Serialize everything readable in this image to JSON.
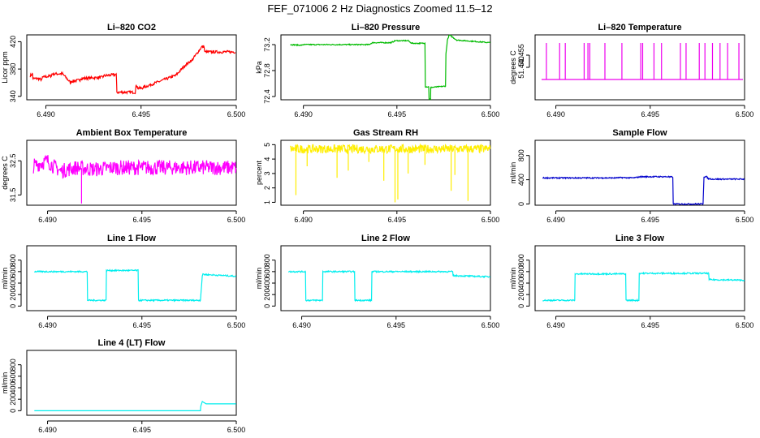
{
  "figure": {
    "title": "FEF_071006  2 Hz Diagnostics Zoomed 11.5–12"
  },
  "chart_data": [
    {
      "type": "line",
      "title": "Li–820 CO2",
      "ylabel": "Licor ppm",
      "xlim": [
        6.489,
        6.5
      ],
      "ylim": [
        335,
        430
      ],
      "xticks": [
        6.49,
        6.495,
        6.5
      ],
      "xtick_labels": [
        "6.490",
        "6.495",
        "6.500"
      ],
      "yticks": [
        340,
        380,
        420
      ],
      "ytick_labels": [
        "340",
        "380",
        "420"
      ],
      "color": "#ff0000",
      "noise": 2,
      "series": [
        {
          "x": [
            6.48918,
            6.4893,
            6.48932,
            6.4896,
            6.4898,
            6.48982,
            6.4903,
            6.49032,
            6.49085,
            6.49088,
            6.4913,
            6.49133,
            6.4918,
            6.49183,
            6.493,
            6.49303,
            6.4937,
            6.49373,
            6.49392,
            6.49395,
            6.4947,
            6.49473,
            6.4948,
            6.49483,
            6.49498,
            6.49502,
            6.49675,
            6.4968,
            6.4974,
            6.49746,
            6.4976,
            6.49765,
            6.4982,
            6.49825,
            6.4983,
            6.49835,
            6.49995
          ],
          "y": [
            370,
            373,
            366,
            366,
            364,
            368,
            370,
            373,
            373,
            373,
            360,
            362,
            364,
            366,
            368,
            370,
            372,
            346,
            346,
            346,
            346,
            355,
            355,
            352,
            352,
            352,
            370,
            370,
            388,
            388,
            392,
            392,
            413,
            413,
            413,
            405,
            405
          ]
        }
      ]
    },
    {
      "type": "line",
      "title": "Li–820 Pressure",
      "ylabel": "kPa",
      "xlim": [
        6.4888,
        6.5
      ],
      "ylim": [
        72.35,
        73.35
      ],
      "xticks": [
        6.49,
        6.495,
        6.5
      ],
      "xtick_labels": [
        "6.490",
        "6.495",
        "6.500"
      ],
      "yticks": [
        72.4,
        72.8,
        73.2
      ],
      "ytick_labels": [
        "72.4",
        "72.8",
        "73.2"
      ],
      "color": "#00bb00",
      "noise": 0.008,
      "series": [
        {
          "x": [
            6.4893,
            6.4899,
            6.49,
            6.4935,
            6.4937,
            6.4947,
            6.4949,
            6.4956,
            6.4958,
            6.4965,
            6.49652,
            6.4967,
            6.49672,
            6.4968,
            6.49681,
            6.4976,
            6.49762,
            6.4977,
            6.4978,
            6.4982,
            6.49999
          ],
          "y": [
            73.2,
            73.19,
            73.2,
            73.2,
            73.23,
            73.23,
            73.26,
            73.26,
            73.22,
            73.22,
            72.55,
            72.55,
            72.36,
            72.36,
            72.54,
            72.56,
            73.05,
            73.27,
            73.35,
            73.27,
            73.23
          ]
        }
      ]
    },
    {
      "type": "line",
      "title": "Li–820 Temperature",
      "ylabel": "degrees C",
      "xlim": [
        6.4889,
        6.5
      ],
      "ylim": [
        51.4,
        51.48
      ],
      "xticks": [
        6.49,
        6.495,
        6.5
      ],
      "xtick_labels": [
        "6.490",
        "6.495",
        "6.500"
      ],
      "yticks": [
        51.44,
        51.455
      ],
      "ytick_labels": [
        "51.440",
        "51.455"
      ],
      "color": "#ee00ee",
      "baseline": 51.425,
      "spike_top": 51.47,
      "spikes": [
        6.4895,
        6.4902,
        6.4905,
        6.4915,
        6.4917,
        6.4918,
        6.4926,
        6.4935,
        6.4945,
        6.4946,
        6.4952,
        6.4956,
        6.4966,
        6.4969,
        6.4976,
        6.4979,
        6.4983,
        6.4987,
        6.4991,
        6.4997
      ]
    },
    {
      "type": "line",
      "title": "Ambient Box Temperature",
      "ylabel": "degrees C",
      "xlim": [
        6.4889,
        6.5
      ],
      "ylim": [
        31.2,
        33.1
      ],
      "xticks": [
        6.49,
        6.495,
        6.5
      ],
      "xtick_labels": [
        "6.490",
        "6.495",
        "6.500"
      ],
      "yticks": [
        31.5,
        32.5
      ],
      "ytick_labels": [
        "31.5",
        "32.5"
      ],
      "color": "#ff00ff",
      "noise": 0.22,
      "series": [
        {
          "x": [
            6.48925,
            6.49,
            6.4903,
            6.4907,
            6.4915,
            6.4925,
            6.4935,
            6.49999
          ],
          "y": [
            32.35,
            32.5,
            32.35,
            32.2,
            32.3,
            32.25,
            32.3,
            32.3
          ]
        }
      ],
      "spikes_down": [
        {
          "x": 6.4918,
          "y": 31.25
        }
      ]
    },
    {
      "type": "line",
      "title": "Gas Stream RH",
      "ylabel": "percent",
      "xlim": [
        6.4888,
        6.5
      ],
      "ylim": [
        0.8,
        5.3
      ],
      "xticks": [
        6.49,
        6.495,
        6.5
      ],
      "xtick_labels": [
        "6.490",
        "6.495",
        "6.500"
      ],
      "yticks": [
        1,
        2,
        3,
        4,
        5
      ],
      "ytick_labels": [
        "1",
        "2",
        "3",
        "4",
        "5"
      ],
      "color": "#ffee00",
      "noise": 0.3,
      "series": [
        {
          "x": [
            6.4893,
            6.49999
          ],
          "y": [
            4.7,
            4.7
          ]
        }
      ],
      "spikes_down": [
        {
          "x": 6.4896,
          "y": 1.5
        },
        {
          "x": 6.4902,
          "y": 3.5
        },
        {
          "x": 6.4918,
          "y": 2.7
        },
        {
          "x": 6.4924,
          "y": 3.2
        },
        {
          "x": 6.4935,
          "y": 3.8
        },
        {
          "x": 6.4943,
          "y": 2.5
        },
        {
          "x": 6.4949,
          "y": 1.0
        },
        {
          "x": 6.49505,
          "y": 1.2
        },
        {
          "x": 6.4956,
          "y": 3.0
        },
        {
          "x": 6.4965,
          "y": 3.6
        },
        {
          "x": 6.4979,
          "y": 1.8
        },
        {
          "x": 6.4981,
          "y": 2.9
        },
        {
          "x": 6.4988,
          "y": 1.1
        }
      ]
    },
    {
      "type": "line",
      "title": "Sample Flow",
      "ylabel": "ml/min",
      "xlim": [
        6.4889,
        6.5
      ],
      "ylim": [
        -20,
        1050
      ],
      "xticks": [
        6.49,
        6.495,
        6.5
      ],
      "xtick_labels": [
        "6.490",
        "6.495",
        "6.500"
      ],
      "yticks": [
        0,
        400,
        800
      ],
      "ytick_labels": [
        "0",
        "400",
        "800"
      ],
      "color": "#0000cc",
      "noise": 10,
      "series": [
        {
          "x": [
            6.4893,
            6.492,
            6.4925,
            6.4931,
            6.4935,
            6.4941,
            6.4945,
            6.496,
            6.49602,
            6.4962,
            6.49622,
            6.49625,
            6.4978,
            6.49785,
            6.498,
            6.49805,
            6.4983,
            6.49999
          ],
          "y": [
            430,
            430,
            430,
            430,
            435,
            430,
            450,
            450,
            445,
            445,
            0,
            0,
            0,
            450,
            450,
            420,
            410,
            410
          ]
        }
      ]
    },
    {
      "type": "line",
      "title": "Line 1 Flow",
      "ylabel": "ml/min",
      "xlim": [
        6.4889,
        6.5
      ],
      "ylim": [
        -80,
        1050
      ],
      "xticks": [
        6.49,
        6.495,
        6.5
      ],
      "xtick_labels": [
        "6.490",
        "6.495",
        "6.500"
      ],
      "yticks": [
        0,
        200,
        400,
        600,
        800
      ],
      "ytick_labels": [
        "0",
        "200",
        "400",
        "600",
        "800"
      ],
      "color": "#00eeee",
      "noise": 12,
      "series": [
        {
          "x": [
            6.4893,
            6.4921,
            6.49212,
            6.4931,
            6.49312,
            6.4948,
            6.49482,
            6.4981,
            6.4982,
            6.49825,
            6.4983,
            6.49999
          ],
          "y": [
            600,
            600,
            100,
            100,
            620,
            620,
            100,
            100,
            530,
            560,
            550,
            520
          ]
        }
      ]
    },
    {
      "type": "line",
      "title": "Line 2 Flow",
      "ylabel": "ml/min",
      "xlim": [
        6.4889,
        6.5
      ],
      "ylim": [
        -80,
        1050
      ],
      "xticks": [
        6.49,
        6.495,
        6.5
      ],
      "xtick_labels": [
        "6.490",
        "6.495",
        "6.500"
      ],
      "yticks": [
        0,
        200,
        400,
        600,
        800
      ],
      "ytick_labels": [
        "0",
        "200",
        "400",
        "600",
        "800"
      ],
      "color": "#00eeee",
      "noise": 12,
      "series": [
        {
          "x": [
            6.4893,
            6.4902,
            6.49022,
            6.4911,
            6.49112,
            6.4928,
            6.49282,
            6.4937,
            6.49372,
            6.498,
            6.49802,
            6.49999
          ],
          "y": [
            600,
            600,
            100,
            100,
            600,
            600,
            100,
            100,
            600,
            600,
            530,
            510
          ]
        }
      ]
    },
    {
      "type": "line",
      "title": "Line 3 Flow",
      "ylabel": "ml/min",
      "xlim": [
        6.4889,
        6.5
      ],
      "ylim": [
        -80,
        1050
      ],
      "xticks": [
        6.49,
        6.495,
        6.5
      ],
      "xtick_labels": [
        "6.490",
        "6.495",
        "6.500"
      ],
      "yticks": [
        0,
        200,
        400,
        600,
        800
      ],
      "ytick_labels": [
        "0",
        "200",
        "400",
        "600",
        "800"
      ],
      "color": "#00eeee",
      "noise": 12,
      "series": [
        {
          "x": [
            6.4893,
            6.491,
            6.49102,
            6.4937,
            6.49372,
            6.4944,
            6.49442,
            6.4981,
            6.49812,
            6.49999
          ],
          "y": [
            100,
            100,
            560,
            560,
            100,
            100,
            570,
            570,
            460,
            450
          ]
        }
      ]
    },
    {
      "type": "line",
      "title": "Line 4 (LT) Flow",
      "ylabel": "ml/min",
      "xlim": [
        6.4889,
        6.5
      ],
      "ylim": [
        -80,
        1050
      ],
      "xticks": [
        6.49,
        6.495,
        6.5
      ],
      "xtick_labels": [
        "6.490",
        "6.495",
        "6.500"
      ],
      "yticks": [
        0,
        200,
        400,
        600,
        800
      ],
      "ytick_labels": [
        "0",
        "200",
        "400",
        "600",
        "800"
      ],
      "color": "#00eeee",
      "noise": 0,
      "series": [
        {
          "x": [
            6.4893,
            6.4981,
            6.49812,
            6.4982,
            6.4984,
            6.49999
          ],
          "y": [
            0,
            0,
            80,
            160,
            120,
            120
          ]
        }
      ]
    }
  ]
}
